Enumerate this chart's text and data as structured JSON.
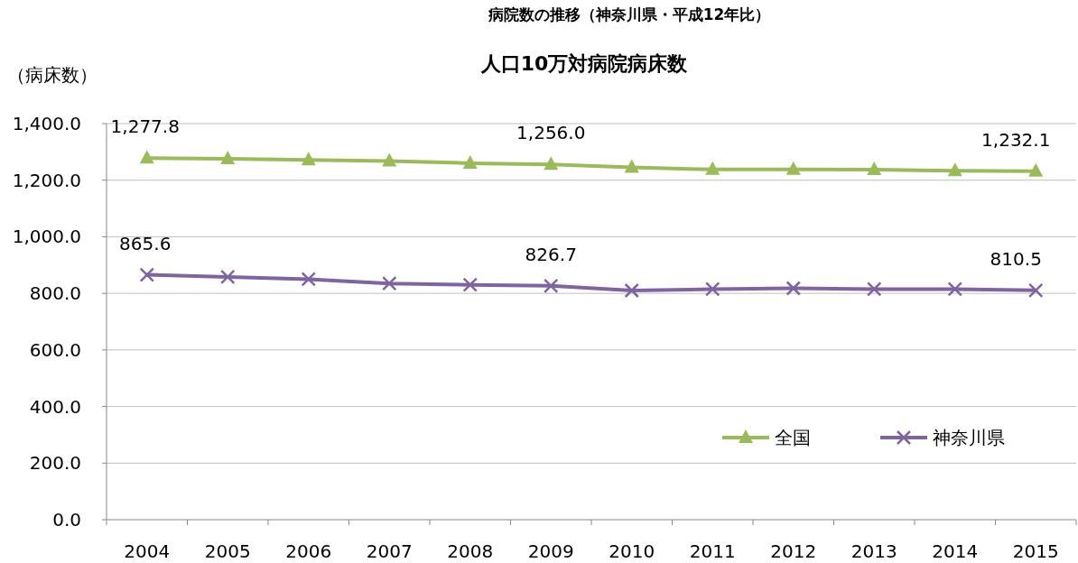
{
  "chart_data": {
    "type": "line",
    "title": "病院数の推移（神奈川県・平成12年比）",
    "subtitle": "人口10万対病院病床数",
    "ylabel": "（病床数）",
    "categories": [
      "2004",
      "2005",
      "2006",
      "2007",
      "2008",
      "2009",
      "2010",
      "2011",
      "2012",
      "2013",
      "2014",
      "2015"
    ],
    "series": [
      {
        "name": "全国",
        "color": "#9bbb59",
        "marker": "triangle",
        "values": [
          1277.8,
          1276,
          1272,
          1268,
          1260,
          1256.0,
          1245,
          1238,
          1238,
          1237,
          1233,
          1232.1
        ],
        "value_labels": [
          "1,277.8",
          null,
          null,
          null,
          null,
          "1,256.0",
          null,
          null,
          null,
          null,
          null,
          "1,232.1"
        ]
      },
      {
        "name": "神奈川県",
        "color": "#8064a2",
        "marker": "cross",
        "values": [
          865.6,
          858,
          850,
          835,
          830,
          826.7,
          810,
          815,
          818,
          815,
          815,
          810.5
        ],
        "value_labels": [
          "865.6",
          null,
          null,
          null,
          null,
          "826.7",
          null,
          null,
          null,
          null,
          null,
          "810.5"
        ]
      }
    ],
    "ylim": [
      0,
      1400
    ],
    "yticks": [
      {
        "value": 0,
        "label": "0.0"
      },
      {
        "value": 200,
        "label": "200.0"
      },
      {
        "value": 400,
        "label": "400.0"
      },
      {
        "value": 600,
        "label": "600.0"
      },
      {
        "value": 800,
        "label": "800.0"
      },
      {
        "value": 1000,
        "label": "1,000.0"
      },
      {
        "value": 1200,
        "label": "1,200.0"
      },
      {
        "value": 1400,
        "label": "1,400.0"
      }
    ],
    "grid": "y",
    "legend": "bottom right",
    "line_style": "solid"
  }
}
